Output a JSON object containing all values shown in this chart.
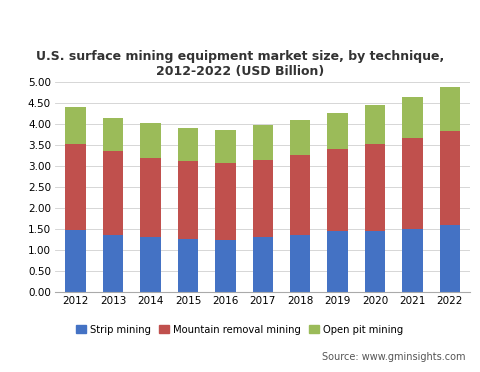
{
  "years": [
    2012,
    2013,
    2014,
    2015,
    2016,
    2017,
    2018,
    2019,
    2020,
    2021,
    2022
  ],
  "strip_mining": [
    1.47,
    1.36,
    1.3,
    1.26,
    1.24,
    1.3,
    1.36,
    1.44,
    1.44,
    1.51,
    1.6
  ],
  "mountain_removal": [
    2.05,
    1.99,
    1.9,
    1.85,
    1.82,
    1.85,
    1.9,
    1.97,
    2.08,
    2.15,
    2.24
  ],
  "open_pit": [
    0.88,
    0.8,
    0.82,
    0.79,
    0.8,
    0.82,
    0.83,
    0.84,
    0.94,
    0.98,
    1.04
  ],
  "strip_color": "#4472c4",
  "mountain_color": "#c0504d",
  "open_pit_color": "#9bbb59",
  "title_line1": "U.S. surface mining equipment market size, by technique,",
  "title_line2": "2012-2022 (USD Billion)",
  "ylim": [
    0,
    5.0
  ],
  "yticks": [
    0.0,
    0.5,
    1.0,
    1.5,
    2.0,
    2.5,
    3.0,
    3.5,
    4.0,
    4.5,
    5.0
  ],
  "source_text": "Source: www.gminsights.com",
  "legend_labels": [
    "Strip mining",
    "Mountain removal mining",
    "Open pit mining"
  ],
  "background_color": "#ffffff",
  "footer_color": "#e0e0e0",
  "bar_width": 0.55
}
